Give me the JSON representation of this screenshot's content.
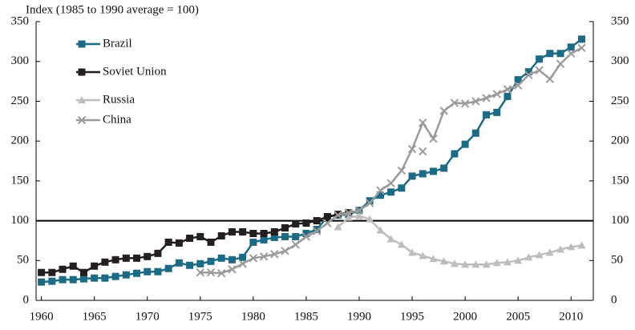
{
  "chart_data": {
    "type": "line",
    "y_label": "Index (1985 to 1990 average = 100)",
    "xlim": [
      1959.5,
      2012.1
    ],
    "xticks": [
      1960,
      1965,
      1970,
      1975,
      1980,
      1985,
      1990,
      1995,
      2000,
      2005,
      2010
    ],
    "ylim": [
      0,
      350
    ],
    "yticks": [
      0,
      50,
      100,
      150,
      200,
      250,
      300,
      350
    ],
    "y2lim": [
      0,
      350
    ],
    "y2ticks": [
      0,
      50,
      100,
      150,
      200,
      250,
      300,
      350
    ],
    "reference_line": 100,
    "series": [
      {
        "name": "Brazil",
        "color": "#1b6b86",
        "marker": "square",
        "x": [
          1960,
          1961,
          1962,
          1963,
          1964,
          1965,
          1966,
          1967,
          1968,
          1969,
          1970,
          1971,
          1972,
          1973,
          1974,
          1975,
          1976,
          1977,
          1978,
          1979,
          1980,
          1981,
          1982,
          1983,
          1984,
          1985,
          1986,
          1987,
          1988,
          1989,
          1990,
          1991,
          1992,
          1993,
          1994,
          1995,
          1996,
          1997,
          1998,
          1999,
          2000,
          2001,
          2002,
          2003,
          2004,
          2005,
          2006,
          2007,
          2008,
          2009,
          2010,
          2011
        ],
        "values": [
          23,
          24,
          26,
          26,
          27,
          28,
          28,
          30,
          32,
          34,
          36,
          36,
          40,
          47,
          44,
          46,
          49,
          53,
          51,
          54,
          73,
          76,
          79,
          80,
          80,
          84,
          89,
          105,
          107,
          108,
          113,
          125,
          132,
          136,
          141,
          156,
          159,
          162,
          166,
          184,
          196,
          210,
          233,
          236,
          256,
          277,
          287,
          303,
          310,
          310,
          318,
          328
        ]
      },
      {
        "name": "Soviet Union",
        "color": "#231f20",
        "marker": "square",
        "x": [
          1960,
          1961,
          1962,
          1963,
          1964,
          1965,
          1966,
          1967,
          1968,
          1969,
          1970,
          1971,
          1972,
          1973,
          1974,
          1975,
          1976,
          1977,
          1978,
          1979,
          1980,
          1981,
          1982,
          1983,
          1984,
          1985,
          1986,
          1987,
          1988,
          1989
        ],
        "values": [
          35,
          35,
          39,
          43,
          35,
          43,
          48,
          51,
          53,
          53,
          55,
          59,
          73,
          72,
          78,
          80,
          73,
          81,
          86,
          86,
          84,
          84,
          86,
          91,
          96,
          97,
          100,
          105,
          108,
          110
        ]
      },
      {
        "name": "Russia",
        "color": "#bdbdbd",
        "marker": "triangle",
        "x": [
          1988,
          1989,
          1990,
          1991,
          1992,
          1993,
          1994,
          1995,
          1996,
          1997,
          1998,
          1999,
          2000,
          2001,
          2002,
          2003,
          2004,
          2005,
          2006,
          2007,
          2008,
          2009,
          2010,
          2011
        ],
        "values": [
          92,
          104,
          106,
          102,
          88,
          77,
          70,
          60,
          56,
          52,
          49,
          46,
          45,
          45,
          45,
          47,
          48,
          50,
          54,
          57,
          60,
          64,
          67,
          69
        ]
      },
      {
        "name": "China",
        "color": "#9b9b9b",
        "marker": "cross",
        "x": [
          1975,
          1976,
          1977,
          1978,
          1979,
          1980,
          1981,
          1982,
          1983,
          1984,
          1985,
          1986,
          1987,
          1988,
          1989,
          1990,
          1991,
          1992,
          1993,
          1994,
          1995,
          1996,
          1997,
          1998,
          1999,
          2000,
          2001,
          2002,
          2003,
          2004,
          2005,
          2006,
          2007,
          2008,
          2009,
          2010,
          2011,
          null,
          1996
        ],
        "values": [
          35,
          35,
          34,
          39,
          46,
          53,
          55,
          58,
          62,
          70,
          80,
          87,
          97,
          107,
          110,
          113,
          122,
          138,
          147,
          163,
          190,
          223,
          203,
          238,
          248,
          247,
          250,
          254,
          259,
          265,
          270,
          283,
          289,
          278,
          297,
          310,
          317,
          null,
          187
        ]
      }
    ]
  }
}
